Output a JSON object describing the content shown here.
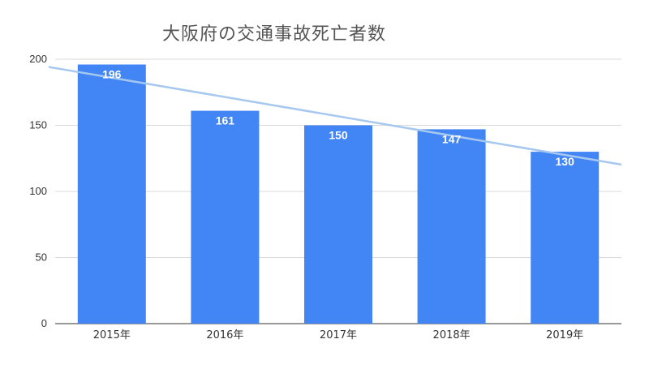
{
  "chart_data": {
    "type": "bar",
    "title": "大阪府の交通事故死亡者数",
    "categories": [
      "2015年",
      "2016年",
      "2017年",
      "2018年",
      "2019年"
    ],
    "series": [
      {
        "values": [
          196,
          161,
          150,
          147,
          130
        ],
        "color": "#4285f4"
      }
    ],
    "data_labels": [
      "196",
      "161",
      "150",
      "147",
      "130"
    ],
    "ylim": [
      0,
      200
    ],
    "yticks": [
      0,
      50,
      100,
      150,
      200
    ],
    "ytick_labels": [
      "0",
      "50",
      "100",
      "150",
      "200"
    ],
    "trendline": {
      "type": "linear",
      "color": "#a6c8f0"
    },
    "grid": true,
    "xlabel": "",
    "ylabel": ""
  }
}
